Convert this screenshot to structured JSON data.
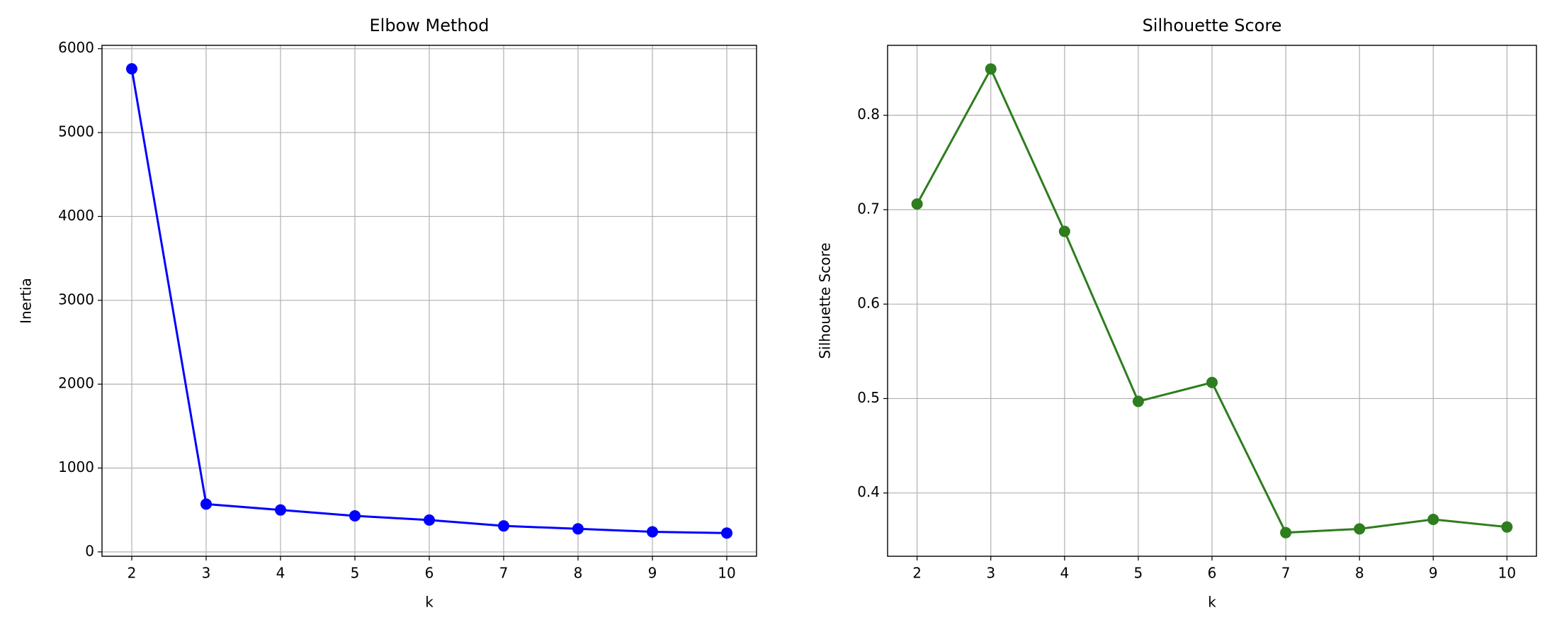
{
  "chart_data": [
    {
      "type": "line",
      "title": "Elbow Method",
      "x_label": "k",
      "y_label": "Inertia",
      "x": [
        2,
        3,
        4,
        5,
        6,
        7,
        8,
        9,
        10
      ],
      "values": [
        5760,
        570,
        500,
        430,
        380,
        310,
        275,
        240,
        225
      ],
      "color": "#0000ff",
      "xlim": [
        1.6,
        10.4
      ],
      "ylim": [
        -52,
        6040
      ],
      "xticks": [
        2,
        3,
        4,
        5,
        6,
        7,
        8,
        9,
        10
      ],
      "yticks": [
        0,
        1000,
        2000,
        3000,
        4000,
        5000,
        6000
      ],
      "grid": true
    },
    {
      "type": "line",
      "title": "Silhouette Score",
      "x_label": "k",
      "y_label": "Silhouette Score",
      "x": [
        2,
        3,
        4,
        5,
        6,
        7,
        8,
        9,
        10
      ],
      "values": [
        0.706,
        0.849,
        0.677,
        0.497,
        0.517,
        0.358,
        0.362,
        0.372,
        0.364
      ],
      "color": "#2e7d1e",
      "xlim": [
        1.6,
        10.4
      ],
      "ylim": [
        0.333,
        0.874
      ],
      "xticks": [
        2,
        3,
        4,
        5,
        6,
        7,
        8,
        9,
        10
      ],
      "yticks": [
        0.4,
        0.5,
        0.6,
        0.7,
        0.8
      ],
      "grid": true
    }
  ]
}
